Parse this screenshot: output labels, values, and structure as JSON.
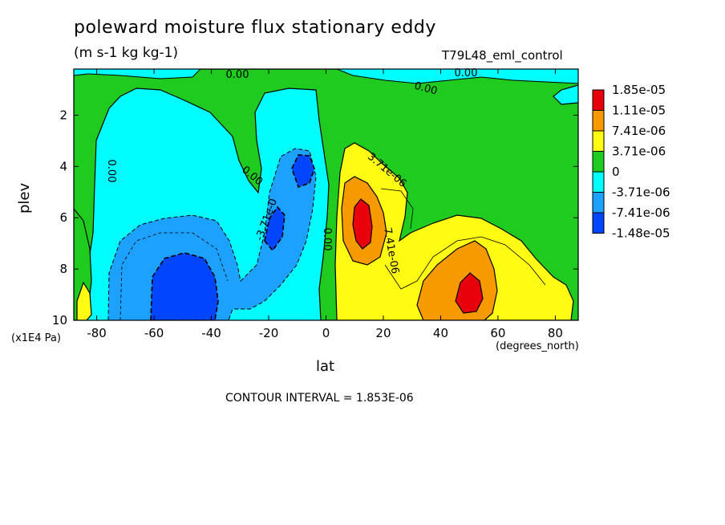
{
  "chart_data": {
    "type": "heatmap",
    "title": "poleward moisture flux stationary eddy",
    "units": "(m s-1 kg kg-1)",
    "experiment": "T79L48_eml_control",
    "xlabel": "lat",
    "xunit": "(degrees_north)",
    "ylabel": "plev",
    "yfactor": "(x1E4 Pa)",
    "contour_interval": "CONTOUR INTERVAL = 1.853E-06",
    "xlim": [
      -88,
      88
    ],
    "ylim": [
      10,
      0.2
    ],
    "xticks": [
      -80,
      -60,
      -40,
      -20,
      0,
      20,
      40,
      60,
      80
    ],
    "xtick_labels": [
      "-80",
      "-60",
      "-40",
      "-20",
      "0",
      "20",
      "40",
      "60",
      "80"
    ],
    "yticks": [
      2,
      4,
      6,
      8,
      10
    ],
    "ytick_labels": [
      "2",
      "4",
      "6",
      "8",
      "10"
    ],
    "colorbar": {
      "labels": [
        "1.85e-05",
        "1.11e-05",
        "7.41e-06",
        "3.71e-06",
        "0",
        "-3.71e-06",
        "-7.41e-06",
        "-1.48e-05"
      ],
      "colors": [
        "#e8000b",
        "#f79a00",
        "#fffb13",
        "#20cb20",
        "#00fdfd",
        "#1da1ff",
        "#0046ff"
      ]
    },
    "contour_labels": [
      "0.00",
      "0.00",
      "0.00",
      "0.00",
      "0.00",
      "0.00",
      "-3.71e-0",
      "3.71e-06",
      "7.41e-06"
    ],
    "regions": [
      {
        "level": "neg2",
        "center": [
          -50,
          8.8
        ]
      },
      {
        "level": "neg3",
        "center": [
          -48,
          8.9
        ]
      },
      {
        "level": "neg3",
        "center": [
          -10,
          4.2
        ]
      },
      {
        "level": "neg3",
        "center": [
          -14,
          6.7
        ]
      },
      {
        "level": "pos4",
        "center": [
          13,
          6.2
        ]
      },
      {
        "level": "pos4",
        "center": [
          52,
          9.1
        ]
      },
      {
        "level": "pos3",
        "center": [
          48,
          8.8
        ]
      },
      {
        "level": "pos1",
        "center": [
          -84,
          9.4
        ]
      }
    ]
  }
}
